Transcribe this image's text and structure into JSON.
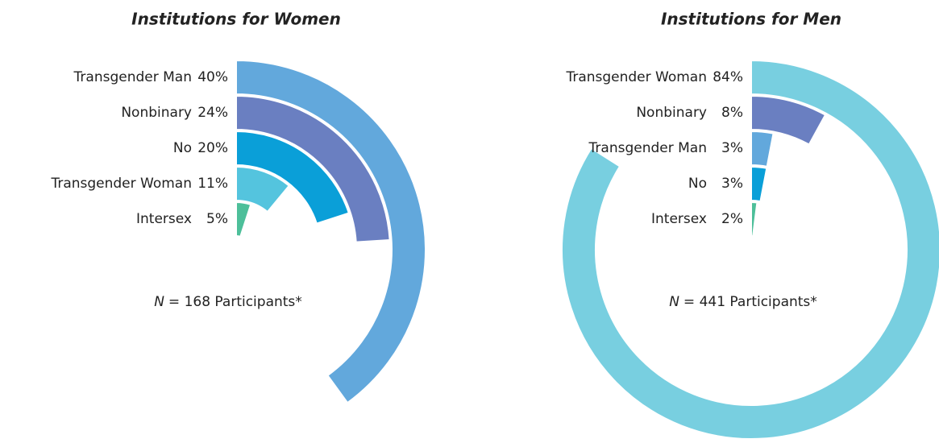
{
  "chart_data": [
    {
      "type": "radial_bar",
      "title": "Institutions for Women",
      "note_symbol": "N",
      "note": "= 168 Participants*",
      "categories": [
        "Transgender Man",
        "Nonbinary",
        "No",
        "Transgender Woman",
        "Intersex"
      ],
      "values": [
        40,
        24,
        20,
        11,
        5
      ],
      "value_labels": [
        "40%",
        "24%",
        "20%",
        "11%",
        "5%"
      ],
      "colors": [
        "#62a8dc",
        "#6a7fc1",
        "#0a9fd8",
        "#54c4de",
        "#4dbf9a"
      ],
      "xlim": [
        0,
        100
      ]
    },
    {
      "type": "radial_bar",
      "title": "Institutions for Men",
      "note_symbol": "N",
      "note": "= 441 Participants*",
      "categories": [
        "Transgender Woman",
        "Nonbinary",
        "Transgender Man",
        "No",
        "Intersex"
      ],
      "values": [
        84,
        8,
        3,
        3,
        2
      ],
      "value_labels": [
        "84%",
        "8%",
        "3%",
        "3%",
        "2%"
      ],
      "colors": [
        "#78cfe0",
        "#6a7fc1",
        "#62a8dc",
        "#0a9fd8",
        "#4dbf9a"
      ],
      "xlim": [
        0,
        100
      ]
    }
  ]
}
